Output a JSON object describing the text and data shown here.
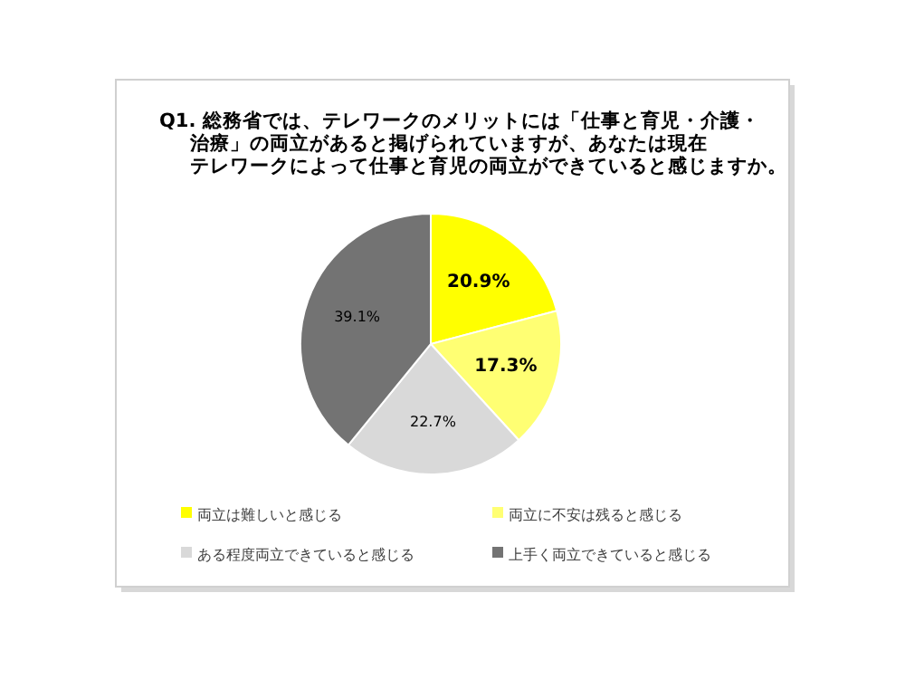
{
  "chart_data": {
    "type": "pie",
    "title": "Q1. 総務省では、テレワークのメリットには「仕事と育児・介護・治療」の両立があると掲げられていますが、あなたは現在テレワークによって仕事と育児の両立ができていると感じますか。",
    "categories": [
      "両立は難しいと感じる",
      "両立に不安は残ると感じる",
      "ある程度両立できていると感じる",
      "上手く両立できていると感じる"
    ],
    "values": [
      20.9,
      17.3,
      22.7,
      39.1
    ],
    "colors": [
      "#ffff00",
      "#ffff73",
      "#d9d9d9",
      "#737373"
    ],
    "value_labels": [
      "20.9%",
      "17.3%",
      "22.7%",
      "39.1%"
    ],
    "legend": "bottom"
  }
}
